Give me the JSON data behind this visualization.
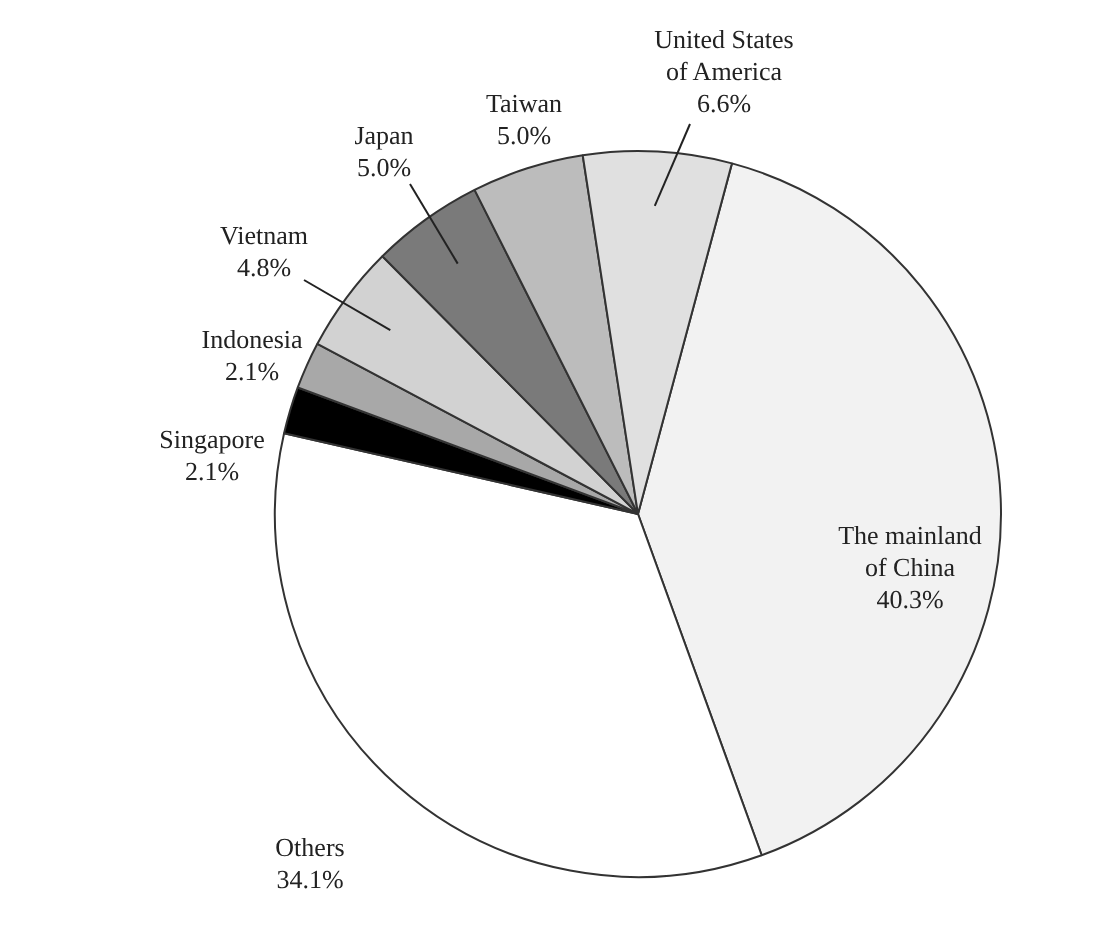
{
  "chart_data": {
    "type": "pie",
    "categories": [
      "The mainland of China",
      "Others",
      "Singapore",
      "Indonesia",
      "Vietnam",
      "Japan",
      "Taiwan",
      "United States of America"
    ],
    "values": [
      40.3,
      34.1,
      2.1,
      2.1,
      4.8,
      5.0,
      5.0,
      6.6
    ],
    "value_labels": [
      "40.3%",
      "34.1%",
      "2.1%",
      "2.1%",
      "4.8%",
      "5.0%",
      "5.0%",
      "6.6%"
    ],
    "colors": [
      "#f2f2f2",
      "#ffffff",
      "#000000",
      "#a8a8a8",
      "#d2d2d2",
      "#7a7a7a",
      "#bcbcbc",
      "#e0e0e0"
    ]
  }
}
